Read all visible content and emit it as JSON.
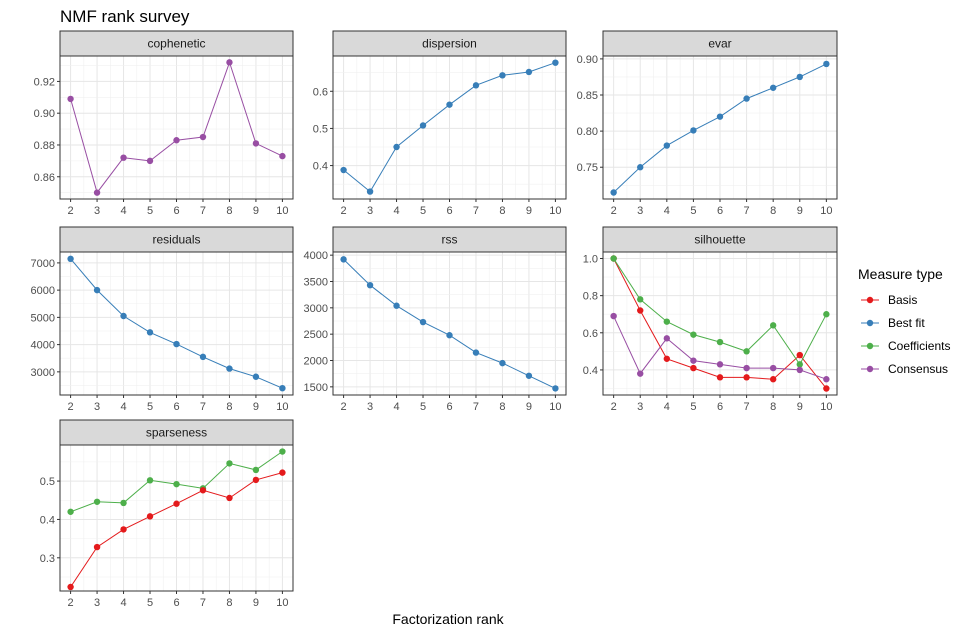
{
  "title": "NMF rank survey",
  "xlabel": "Factorization rank",
  "legend": {
    "title": "Measure type",
    "placement": "right",
    "items": [
      {
        "name": "Basis",
        "color": "#E41A1C"
      },
      {
        "name": "Best fit",
        "color": "#377EB8"
      },
      {
        "name": "Coefficients",
        "color": "#4DAF4A"
      },
      {
        "name": "Consensus",
        "color": "#984EA3"
      }
    ]
  },
  "chart_data": {
    "type": "line",
    "x": [
      2,
      3,
      4,
      5,
      6,
      7,
      8,
      9,
      10
    ],
    "grid": true,
    "panels": [
      {
        "name": "cophenetic",
        "yticks": [
          "0.86",
          "0.88",
          "0.90",
          "0.92"
        ],
        "ylim": [
          0.846,
          0.936
        ],
        "series": [
          {
            "name": "Consensus",
            "values": [
              0.909,
              0.85,
              0.872,
              0.87,
              0.883,
              0.885,
              0.932,
              0.881,
              0.873
            ]
          }
        ]
      },
      {
        "name": "dispersion",
        "yticks": [
          "0.4",
          "0.5",
          "0.6"
        ],
        "ylim": [
          0.31,
          0.695
        ],
        "series": [
          {
            "name": "Best fit",
            "values": [
              0.388,
              0.33,
              0.45,
              0.508,
              0.564,
              0.616,
              0.643,
              0.652,
              0.677
            ]
          }
        ]
      },
      {
        "name": "evar",
        "yticks": [
          "0.75",
          "0.80",
          "0.85",
          "0.90"
        ],
        "ylim": [
          0.706,
          0.904
        ],
        "series": [
          {
            "name": "Best fit",
            "values": [
              0.715,
              0.75,
              0.78,
              0.801,
              0.82,
              0.845,
              0.86,
              0.875,
              0.893
            ]
          }
        ]
      },
      {
        "name": "residuals",
        "yticks": [
          "3000",
          "4000",
          "5000",
          "6000",
          "7000"
        ],
        "ylim": [
          2150,
          7400
        ],
        "series": [
          {
            "name": "Best fit",
            "values": [
              7150,
              6000,
              5050,
              4450,
              4020,
              3550,
              3120,
              2820,
              2400
            ]
          }
        ]
      },
      {
        "name": "rss",
        "yticks": [
          "1500",
          "2000",
          "2500",
          "3000",
          "3500",
          "4000"
        ],
        "ylim": [
          1345,
          4060
        ],
        "series": [
          {
            "name": "Best fit",
            "values": [
              3920,
              3430,
              3040,
              2730,
              2480,
              2150,
              1950,
              1710,
              1470
            ]
          }
        ]
      },
      {
        "name": "silhouette",
        "yticks": [
          "0.4",
          "0.6",
          "0.8",
          "1.0"
        ],
        "ylim": [
          0.265,
          1.035
        ],
        "series": [
          {
            "name": "Basis",
            "values": [
              1.0,
              0.72,
              0.46,
              0.41,
              0.36,
              0.36,
              0.35,
              0.48,
              0.3
            ]
          },
          {
            "name": "Coefficients",
            "values": [
              1.0,
              0.78,
              0.66,
              0.59,
              0.55,
              0.5,
              0.64,
              0.43,
              0.7
            ]
          },
          {
            "name": "Consensus",
            "values": [
              0.69,
              0.38,
              0.57,
              0.45,
              0.43,
              0.41,
              0.41,
              0.4,
              0.35
            ]
          }
        ]
      },
      {
        "name": "sparseness",
        "yticks": [
          "0.3",
          "0.4",
          "0.5"
        ],
        "ylim": [
          0.2135,
          0.594
        ],
        "series": [
          {
            "name": "Coefficients",
            "values": [
              0.42,
              0.446,
              0.443,
              0.502,
              0.492,
              0.481,
              0.546,
              0.529,
              0.577
            ]
          },
          {
            "name": "Basis",
            "values": [
              0.224,
              0.328,
              0.374,
              0.408,
              0.441,
              0.476,
              0.456,
              0.503,
              0.522
            ]
          }
        ]
      }
    ]
  }
}
